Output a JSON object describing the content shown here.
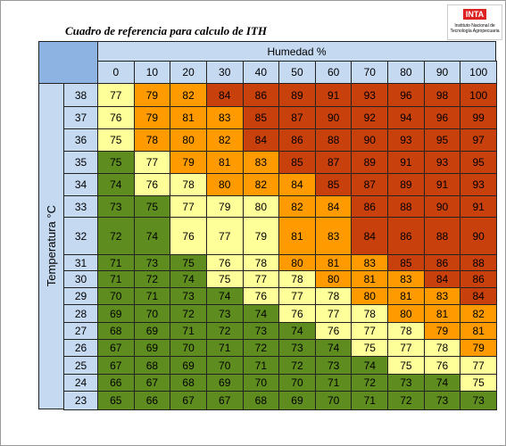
{
  "title": "Cuadro de referencia para calculo de ITH",
  "logo": {
    "mark": "INTA",
    "text": "Instituto Nacional de Tecnología Agropecuaria"
  },
  "table": {
    "column_header": "Humedad %",
    "row_header": "Temperatura °C",
    "columns": [
      0,
      10,
      20,
      30,
      40,
      50,
      60,
      70,
      80,
      90,
      100
    ],
    "palette": {
      "g": "#5e8c1f",
      "y": "#ffff99",
      "o": "#ff9a00",
      "r": "#c8400c"
    },
    "rows": [
      {
        "temp": 38,
        "values": [
          77,
          79,
          82,
          84,
          86,
          89,
          91,
          93,
          96,
          98,
          100
        ],
        "levels": [
          "y",
          "o",
          "o",
          "r",
          "r",
          "r",
          "r",
          "r",
          "r",
          "r",
          "r"
        ]
      },
      {
        "temp": 37,
        "values": [
          76,
          79,
          81,
          83,
          85,
          87,
          90,
          92,
          94,
          96,
          99
        ],
        "levels": [
          "y",
          "o",
          "o",
          "o",
          "r",
          "r",
          "r",
          "r",
          "r",
          "r",
          "r"
        ]
      },
      {
        "temp": 36,
        "values": [
          75,
          78,
          80,
          82,
          84,
          86,
          88,
          90,
          93,
          95,
          97
        ],
        "levels": [
          "y",
          "o",
          "o",
          "o",
          "r",
          "r",
          "r",
          "r",
          "r",
          "r",
          "r"
        ]
      },
      {
        "temp": 35,
        "values": [
          75,
          77,
          79,
          81,
          83,
          85,
          87,
          89,
          91,
          93,
          95
        ],
        "levels": [
          "g",
          "y",
          "o",
          "o",
          "o",
          "r",
          "r",
          "r",
          "r",
          "r",
          "r"
        ]
      },
      {
        "temp": 34,
        "values": [
          74,
          76,
          78,
          80,
          82,
          84,
          85,
          87,
          89,
          91,
          93
        ],
        "levels": [
          "g",
          "y",
          "y",
          "o",
          "o",
          "o",
          "r",
          "r",
          "r",
          "r",
          "r"
        ]
      },
      {
        "temp": 33,
        "values": [
          73,
          75,
          77,
          79,
          80,
          82,
          84,
          86,
          88,
          90,
          91
        ],
        "levels": [
          "g",
          "g",
          "y",
          "y",
          "y",
          "o",
          "o",
          "r",
          "r",
          "r",
          "r"
        ]
      },
      {
        "temp": 32,
        "values": [
          72,
          74,
          76,
          77,
          79,
          81,
          83,
          84,
          86,
          88,
          90
        ],
        "levels": [
          "g",
          "g",
          "y",
          "y",
          "y",
          "o",
          "o",
          "r",
          "r",
          "r",
          "r"
        ]
      },
      {
        "temp": 31,
        "values": [
          71,
          73,
          75,
          76,
          78,
          80,
          81,
          83,
          85,
          86,
          88
        ],
        "levels": [
          "g",
          "g",
          "g",
          "y",
          "y",
          "o",
          "o",
          "o",
          "r",
          "r",
          "r"
        ]
      },
      {
        "temp": 30,
        "values": [
          71,
          72,
          74,
          75,
          77,
          78,
          80,
          81,
          83,
          84,
          86
        ],
        "levels": [
          "g",
          "g",
          "g",
          "y",
          "y",
          "y",
          "o",
          "o",
          "o",
          "r",
          "r"
        ]
      },
      {
        "temp": 29,
        "values": [
          70,
          71,
          73,
          74,
          76,
          77,
          78,
          80,
          81,
          83,
          84
        ],
        "levels": [
          "g",
          "g",
          "g",
          "g",
          "y",
          "y",
          "y",
          "o",
          "o",
          "o",
          "r"
        ]
      },
      {
        "temp": 28,
        "values": [
          69,
          70,
          72,
          73,
          74,
          76,
          77,
          78,
          80,
          81,
          82
        ],
        "levels": [
          "g",
          "g",
          "g",
          "g",
          "g",
          "y",
          "y",
          "y",
          "o",
          "o",
          "o"
        ]
      },
      {
        "temp": 27,
        "values": [
          68,
          69,
          71,
          72,
          73,
          74,
          76,
          77,
          78,
          79,
          81
        ],
        "levels": [
          "g",
          "g",
          "g",
          "g",
          "g",
          "g",
          "y",
          "y",
          "y",
          "o",
          "o"
        ]
      },
      {
        "temp": 26,
        "values": [
          67,
          69,
          70,
          71,
          72,
          73,
          74,
          75,
          77,
          78,
          79
        ],
        "levels": [
          "g",
          "g",
          "g",
          "g",
          "g",
          "g",
          "g",
          "y",
          "y",
          "y",
          "o"
        ]
      },
      {
        "temp": 25,
        "values": [
          67,
          68,
          69,
          70,
          71,
          72,
          73,
          74,
          75,
          76,
          77
        ],
        "levels": [
          "g",
          "g",
          "g",
          "g",
          "g",
          "g",
          "g",
          "g",
          "y",
          "y",
          "y"
        ]
      },
      {
        "temp": 24,
        "values": [
          66,
          67,
          68,
          69,
          70,
          70,
          71,
          72,
          73,
          74,
          75
        ],
        "levels": [
          "g",
          "g",
          "g",
          "g",
          "g",
          "g",
          "g",
          "g",
          "g",
          "g",
          "y"
        ]
      },
      {
        "temp": 23,
        "values": [
          65,
          66,
          67,
          67,
          68,
          69,
          70,
          71,
          72,
          73,
          73
        ],
        "levels": [
          "g",
          "g",
          "g",
          "g",
          "g",
          "g",
          "g",
          "g",
          "g",
          "g",
          "g"
        ]
      }
    ]
  }
}
